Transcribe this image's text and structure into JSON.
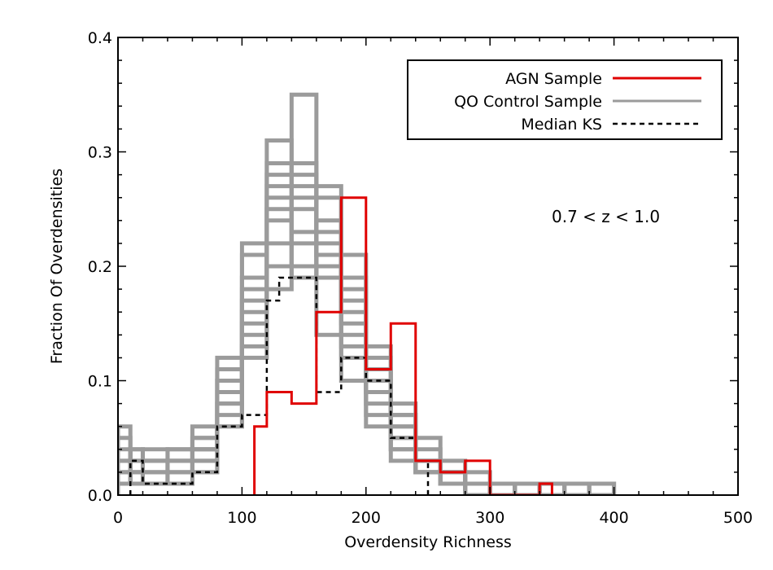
{
  "chart_data": {
    "type": "histogram",
    "xlabel": "Overdensity Richness",
    "ylabel": "Fraction Of Overdensities",
    "xlim": [
      0,
      500
    ],
    "ylim": [
      0,
      0.4
    ],
    "x_ticks": [
      "0",
      "100",
      "200",
      "300",
      "400",
      "500"
    ],
    "y_ticks": [
      "0.0",
      "0.1",
      "0.2",
      "0.3",
      "0.4"
    ],
    "annotation": "0.7 < z < 1.0",
    "legend_position": "top-right",
    "legend": [
      {
        "label": "AGN Sample",
        "color": "#e00000",
        "style": "solid"
      },
      {
        "label": "QO Control Sample",
        "color": "#9b9b9b",
        "style": "solid"
      },
      {
        "label": "Median KS",
        "color": "#000000",
        "style": "dashed"
      }
    ],
    "series": [
      {
        "name": "AGN Sample",
        "color": "#e00000",
        "bin_edges": [
          110,
          120,
          140,
          160,
          180,
          200,
          220,
          240,
          260,
          280,
          300,
          340,
          350
        ],
        "values": [
          0.06,
          0.09,
          0.08,
          0.16,
          0.26,
          0.11,
          0.15,
          0.03,
          0.02,
          0.03,
          0.0,
          0.01
        ]
      },
      {
        "name": "Median KS",
        "color": "#000000",
        "bin_edges": [
          10,
          20,
          30,
          60,
          80,
          100,
          120,
          130,
          160,
          180,
          200,
          220,
          240,
          250
        ],
        "values": [
          0.03,
          0.01,
          0.01,
          0.02,
          0.06,
          0.07,
          0.17,
          0.19,
          0.09,
          0.12,
          0.1,
          0.05,
          0.03
        ]
      },
      {
        "name": "QO Control Sample",
        "color": "#9b9b9b",
        "bin_edges": [
          0,
          10,
          20,
          40,
          60,
          80,
          100,
          120,
          140,
          160,
          180,
          200,
          220,
          240,
          260,
          280,
          300,
          320,
          340,
          360,
          380,
          400
        ],
        "realizations": [
          [
            0.04,
            0.02,
            0.01,
            0.02,
            0.04,
            0.08,
            0.16,
            0.28,
            0.22,
            0.14,
            0.14,
            0.06,
            0.04,
            0.02,
            0.01,
            0.0,
            0.01,
            0.0,
            0.0,
            0.0,
            0.0
          ],
          [
            0.02,
            0.04,
            0.03,
            0.03,
            0.02,
            0.06,
            0.12,
            0.27,
            0.35,
            0.21,
            0.1,
            0.08,
            0.03,
            0.02,
            0.02,
            0.01,
            0.0,
            0.0,
            0.01,
            0.0,
            0.0
          ],
          [
            0.06,
            0.01,
            0.02,
            0.01,
            0.05,
            0.12,
            0.21,
            0.24,
            0.19,
            0.26,
            0.16,
            0.1,
            0.06,
            0.03,
            0.01,
            0.01,
            0.01,
            0.0,
            0.0,
            0.01,
            0.0
          ],
          [
            0.01,
            0.03,
            0.02,
            0.04,
            0.03,
            0.07,
            0.18,
            0.29,
            0.28,
            0.2,
            0.21,
            0.12,
            0.05,
            0.04,
            0.02,
            0.0,
            0.0,
            0.01,
            0.0,
            0.0,
            0.0
          ],
          [
            0.03,
            0.02,
            0.04,
            0.02,
            0.06,
            0.1,
            0.14,
            0.2,
            0.26,
            0.27,
            0.17,
            0.09,
            0.07,
            0.02,
            0.01,
            0.02,
            0.0,
            0.0,
            0.0,
            0.0,
            0.0
          ],
          [
            0.02,
            0.01,
            0.03,
            0.03,
            0.04,
            0.09,
            0.22,
            0.18,
            0.27,
            0.22,
            0.12,
            0.13,
            0.05,
            0.03,
            0.03,
            0.01,
            0.01,
            0.0,
            0.0,
            0.0,
            0.01
          ],
          [
            0.05,
            0.03,
            0.01,
            0.02,
            0.02,
            0.08,
            0.15,
            0.31,
            0.2,
            0.24,
            0.18,
            0.07,
            0.08,
            0.02,
            0.01,
            0.0,
            0.01,
            0.0,
            0.01,
            0.0,
            0.0
          ],
          [
            0.01,
            0.02,
            0.02,
            0.04,
            0.05,
            0.11,
            0.17,
            0.25,
            0.29,
            0.19,
            0.15,
            0.1,
            0.04,
            0.05,
            0.02,
            0.01,
            0.0,
            0.01,
            0.0,
            0.0,
            0.0
          ],
          [
            0.03,
            0.04,
            0.03,
            0.01,
            0.03,
            0.06,
            0.13,
            0.22,
            0.25,
            0.23,
            0.19,
            0.11,
            0.06,
            0.02,
            0.01,
            0.0,
            0.0,
            0.0,
            0.0,
            0.01,
            0.0
          ],
          [
            0.02,
            0.02,
            0.01,
            0.03,
            0.04,
            0.1,
            0.19,
            0.26,
            0.23,
            0.21,
            0.13,
            0.09,
            0.07,
            0.03,
            0.02,
            0.01,
            0.01,
            0.0,
            0.0,
            0.0,
            0.01
          ]
        ]
      }
    ]
  }
}
